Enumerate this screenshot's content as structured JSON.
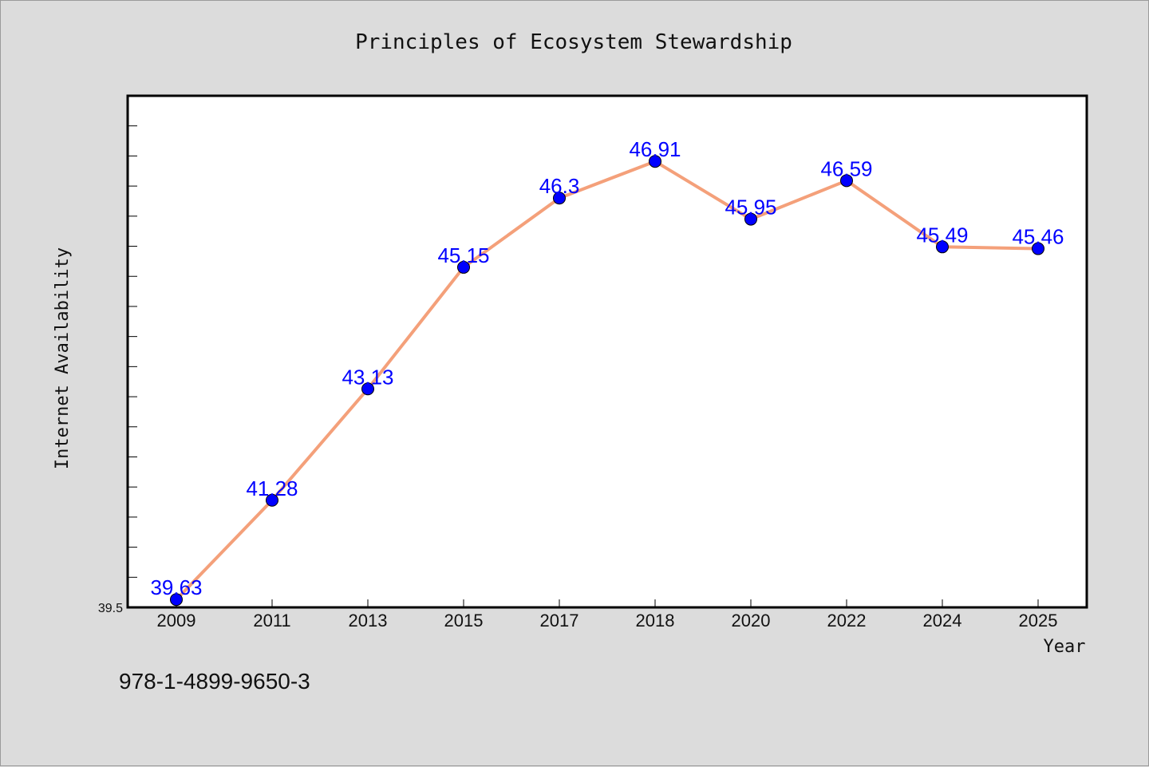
{
  "isbn": "978-1-4899-9650-3",
  "colors": {
    "background": "#dcdcdc",
    "plot_background": "#ffffff",
    "line": "#f4a07a",
    "marker": "#0000ff",
    "label": "#0000ff"
  },
  "chart_data": {
    "type": "line",
    "title": "Principles of Ecosystem Stewardship",
    "xlabel": "Year",
    "ylabel": "Internet Availability",
    "categories": [
      "2009",
      "2011",
      "2013",
      "2015",
      "2017",
      "2018",
      "2020",
      "2022",
      "2024",
      "2025"
    ],
    "series": [
      {
        "values": [
          39.63,
          41.28,
          43.13,
          45.15,
          46.3,
          46.91,
          45.95,
          46.59,
          45.49,
          45.46
        ],
        "labels": [
          "39.63",
          "41.28",
          "43.13",
          "45.15",
          "46.3",
          "46.91",
          "45.95",
          "46.59",
          "45.49",
          "45.46"
        ]
      }
    ],
    "ylim": [
      39.5,
      48.0
    ],
    "yticks_labeled": [
      "39.5"
    ],
    "grid": false,
    "legend": "none"
  }
}
